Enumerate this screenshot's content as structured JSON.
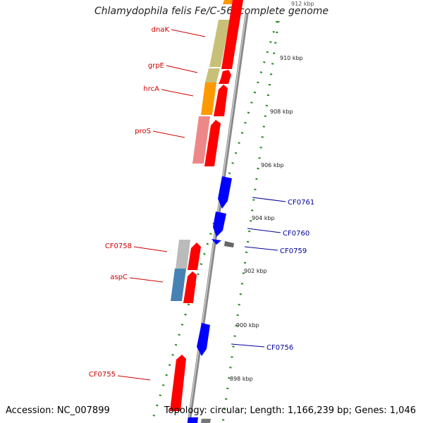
{
  "header": {
    "title": "Chlamydophila felis Fe/C-56, complete genome"
  },
  "footer": {
    "accession": "Accession: NC_007899",
    "topology": "Topology: circular; Length: 1,166,239 bp; Genes: 1,046"
  },
  "ticks": [
    "912 kbp",
    "910 kbp",
    "908 kbp",
    "906 kbp",
    "904 kbp",
    "902 kbp",
    "900 kbp",
    "898 kbp"
  ],
  "gene_labels": [
    "dnaK",
    "grpE",
    "hrcA",
    "proS",
    "CF0758",
    "aspC",
    "CF0755",
    "CF0761",
    "CF0760",
    "CF0759",
    "CF0756"
  ],
  "colors": {
    "forward": "#ff0000",
    "reverse": "#0000ff",
    "cog_olive": "#c8c078",
    "cog_orange": "#ff9900",
    "cog_pink": "#ee8888",
    "cog_gray": "#bbbbbb",
    "cog_steel": "#4682b4",
    "tick": "#228822",
    "backbone": "#888888",
    "label_red": "#cc0000",
    "label_blue": "#000099"
  }
}
